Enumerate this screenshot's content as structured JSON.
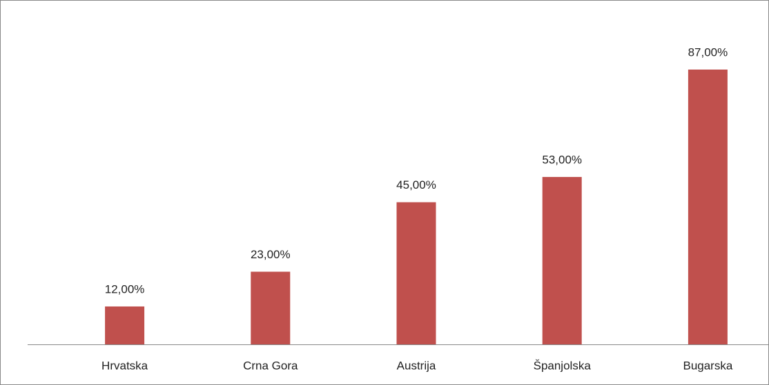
{
  "chart_data": {
    "type": "bar",
    "categories": [
      "Hrvatska",
      "Crna Gora",
      "Austrija",
      "Španjolska",
      "Bugarska"
    ],
    "values": [
      12,
      23,
      45,
      53,
      87
    ],
    "value_labels": [
      "12,00%",
      "23,00%",
      "45,00%",
      "53,00%",
      "87,00%"
    ],
    "color": "#c0504d"
  }
}
